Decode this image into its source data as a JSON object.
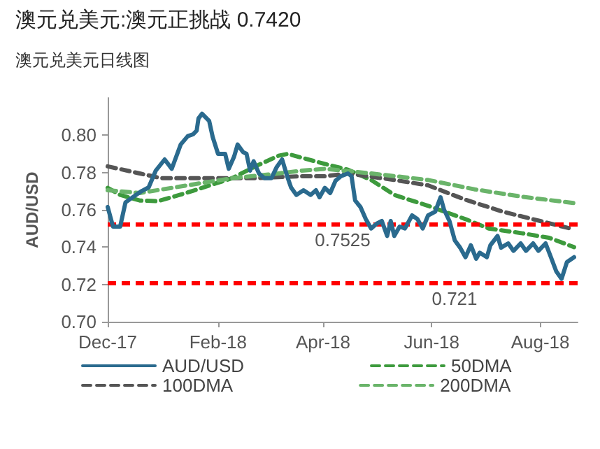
{
  "chart_data": {
    "type": "line",
    "title": "澳元兑美元:澳元正挑战 0.7420",
    "subtitle": "澳元兑美元日线图",
    "ylabel": "AUD/USD",
    "xlim": [
      "2017-12-01",
      "2018-08-22"
    ],
    "xticks": [
      {
        "value": "2017-12-01",
        "label": "Dec-17"
      },
      {
        "value": "2018-02-01",
        "label": "Feb-18"
      },
      {
        "value": "2018-04-01",
        "label": "Apr-18"
      },
      {
        "value": "2018-06-01",
        "label": "Jun-18"
      },
      {
        "value": "2018-08-01",
        "label": "Aug-18"
      }
    ],
    "ylim": [
      0.7,
      0.82
    ],
    "yticks": [
      {
        "value": 0.7,
        "label": "0.70"
      },
      0.72,
      0.74,
      0.76,
      0.78,
      {
        "value": 0.8,
        "label": "0.80"
      }
    ],
    "grid": false,
    "legend": "bottom",
    "marker": "none",
    "series": [
      {
        "name": "AUD/USD",
        "color": "#2a6a8e",
        "line_style": "solid",
        "x": [
          "2017-12-01",
          "2017-12-04",
          "2017-12-08",
          "2017-12-11",
          "2017-12-15",
          "2017-12-20",
          "2017-12-24",
          "2017-12-28",
          "2018-01-02",
          "2018-01-06",
          "2018-01-11",
          "2018-01-15",
          "2018-01-18",
          "2018-01-20",
          "2018-01-21",
          "2018-01-23",
          "2018-01-27",
          "2018-01-29",
          "2018-02-01",
          "2018-02-05",
          "2018-02-07",
          "2018-02-10",
          "2018-02-12",
          "2018-02-15",
          "2018-02-17",
          "2018-02-19",
          "2018-02-21",
          "2018-02-24",
          "2018-02-27",
          "2018-03-03",
          "2018-03-06",
          "2018-03-09",
          "2018-03-12",
          "2018-03-14",
          "2018-03-17",
          "2018-03-21",
          "2018-03-25",
          "2018-03-28",
          "2018-03-30",
          "2018-04-02",
          "2018-04-05",
          "2018-04-08",
          "2018-04-11",
          "2018-04-15",
          "2018-04-17",
          "2018-04-19",
          "2018-04-22",
          "2018-04-25",
          "2018-04-28",
          "2018-05-01",
          "2018-05-04",
          "2018-05-07",
          "2018-05-09",
          "2018-05-11",
          "2018-05-14",
          "2018-05-17",
          "2018-05-21",
          "2018-05-24",
          "2018-05-27",
          "2018-05-30",
          "2018-06-03",
          "2018-06-06",
          "2018-06-08",
          "2018-06-11",
          "2018-06-14",
          "2018-06-17",
          "2018-06-20",
          "2018-06-23",
          "2018-06-26",
          "2018-06-28",
          "2018-07-02",
          "2018-07-04",
          "2018-07-08",
          "2018-07-10",
          "2018-07-14",
          "2018-07-17",
          "2018-07-21",
          "2018-07-24",
          "2018-07-28",
          "2018-07-31",
          "2018-08-04",
          "2018-08-07",
          "2018-08-10",
          "2018-08-13",
          "2018-08-16",
          "2018-08-20"
        ],
        "values": [
          0.7615,
          0.751,
          0.751,
          0.764,
          0.7667,
          0.77,
          0.772,
          0.781,
          0.787,
          0.782,
          0.795,
          0.7995,
          0.8005,
          0.8025,
          0.809,
          0.8115,
          0.8077,
          0.799,
          0.79,
          0.79,
          0.782,
          0.7885,
          0.795,
          0.791,
          0.79,
          0.781,
          0.786,
          0.7795,
          0.777,
          0.777,
          0.783,
          0.787,
          0.7775,
          0.772,
          0.768,
          0.7705,
          0.768,
          0.7705,
          0.7667,
          0.7718,
          0.769,
          0.7756,
          0.778,
          0.7795,
          0.778,
          0.765,
          0.7615,
          0.755,
          0.75,
          0.7525,
          0.754,
          0.746,
          0.754,
          0.746,
          0.751,
          0.75,
          0.757,
          0.755,
          0.75,
          0.757,
          0.759,
          0.7667,
          0.76,
          0.754,
          0.7436,
          0.7397,
          0.7346,
          0.741,
          0.7338,
          0.737,
          0.7346,
          0.741,
          0.746,
          0.7397,
          0.742,
          0.738,
          0.742,
          0.738,
          0.742,
          0.738,
          0.742,
          0.7346,
          0.727,
          0.723,
          0.732,
          0.7346
        ]
      },
      {
        "name": "50DMA",
        "color": "#3d9a3d",
        "line_style": "dashed",
        "x": [
          "2017-12-01",
          "2017-12-08",
          "2017-12-19",
          "2017-12-29",
          "2018-01-14",
          "2018-01-27",
          "2018-02-09",
          "2018-02-22",
          "2018-03-07",
          "2018-03-12",
          "2018-04-02",
          "2018-04-15",
          "2018-04-28",
          "2018-05-11",
          "2018-06-01",
          "2018-06-20",
          "2018-07-03",
          "2018-07-22",
          "2018-08-06",
          "2018-08-20"
        ],
        "values": [
          0.7718,
          0.768,
          0.765,
          0.7646,
          0.769,
          0.773,
          0.777,
          0.7833,
          0.789,
          0.79,
          0.7846,
          0.7815,
          0.776,
          0.768,
          0.7615,
          0.755,
          0.75,
          0.7474,
          0.745,
          0.74
        ]
      },
      {
        "name": "100DMA",
        "color": "#555555",
        "line_style": "dashed",
        "x": [
          "2017-12-01",
          "2017-12-19",
          "2017-12-31",
          "2018-01-27",
          "2018-02-22",
          "2018-03-20",
          "2018-04-02",
          "2018-04-15",
          "2018-05-11",
          "2018-05-30",
          "2018-06-20",
          "2018-07-11",
          "2018-08-01",
          "2018-08-20"
        ],
        "values": [
          0.7833,
          0.7795,
          0.777,
          0.777,
          0.777,
          0.778,
          0.778,
          0.7795,
          0.776,
          0.7731,
          0.7654,
          0.759,
          0.754,
          0.7495
        ]
      },
      {
        "name": "200DMA",
        "color": "#6ab46a",
        "line_style": "dashed",
        "x": [
          "2017-12-01",
          "2017-12-19",
          "2018-01-14",
          "2018-02-09",
          "2018-03-07",
          "2018-03-20",
          "2018-04-02",
          "2018-04-28",
          "2018-05-30",
          "2018-06-25",
          "2018-07-22",
          "2018-08-20"
        ],
        "values": [
          0.7705,
          0.769,
          0.773,
          0.777,
          0.7795,
          0.781,
          0.782,
          0.7795,
          0.776,
          0.771,
          0.767,
          0.7636
        ]
      }
    ],
    "ref_lines": [
      {
        "axis": "y",
        "value": 0.7525,
        "label": "0.7525",
        "color": "#ff0000",
        "line_style": "dashed"
      },
      {
        "axis": "y",
        "value": 0.721,
        "label": "0.721",
        "color": "#ff0000",
        "line_style": "dashed"
      }
    ]
  }
}
